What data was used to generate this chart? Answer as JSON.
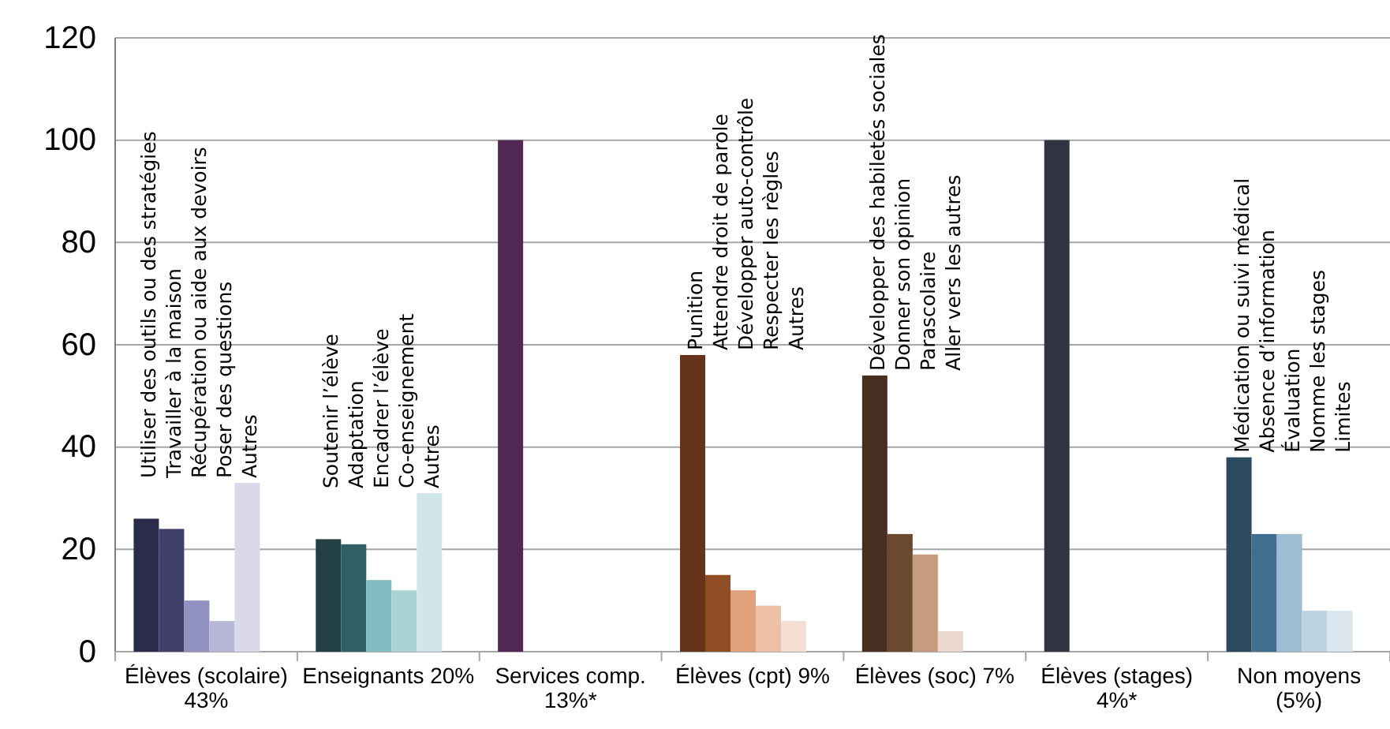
{
  "chart_data": {
    "type": "bar",
    "categories": [
      "Élèves (scolaire) 43%",
      "Enseignants 20%",
      "Services comp. 13%*",
      "Élèves (cpt) 9%",
      "Élèves (soc) 7%",
      "Élèves (stages) 4%*",
      "Non moyens (5%)"
    ],
    "series": [
      {
        "values": [
          26,
          22,
          100,
          58,
          54,
          100,
          38
        ],
        "colors": [
          "#2b2b4a",
          "#224044",
          "#512853",
          "#643319",
          "#472e21",
          "#313341",
          "#2b4a5f"
        ]
      },
      {
        "values": [
          24,
          21,
          null,
          15,
          23,
          null,
          23
        ],
        "colors": [
          "#3f3f69",
          "#325f63",
          null,
          "#8f4d24",
          "#6a4930",
          null,
          "#406e8e"
        ]
      },
      {
        "values": [
          10,
          14,
          null,
          12,
          19,
          null,
          23
        ],
        "colors": [
          "#9191bf",
          "#82bcc0",
          null,
          "#e0a07c",
          "#c69b7e",
          null,
          "#9dbdd3"
        ]
      },
      {
        "values": [
          6,
          12,
          null,
          9,
          4,
          null,
          8
        ],
        "colors": [
          "#b7b6d6",
          "#aad2d2",
          null,
          "#eec0a6",
          "#ebd9cf",
          null,
          "#bed3e2"
        ]
      },
      {
        "values": [
          33,
          31,
          null,
          6,
          null,
          null,
          8
        ],
        "colors": [
          "#dad9ea",
          "#d1e6e8",
          null,
          "#f5ded2",
          null,
          null,
          "#dbe6ee"
        ]
      }
    ],
    "ylim": [
      0,
      120
    ],
    "yticks": [
      0,
      20,
      40,
      60,
      80,
      100,
      120
    ],
    "grid": "y",
    "annotations": [
      "Utiliser des outils ou des stratégies",
      "Travailler à la maison",
      "Récupération ou aide aux devoirs",
      "Poser des questions",
      "Autres",
      "Soutenir l’élève",
      "Adaptation",
      "Encadrer l’élève",
      "Co-enseignement",
      "Autres",
      "Punition",
      "Attendre droit de parole",
      "Développer auto-contrôle",
      "Respecter les règles",
      "Autres",
      "Développer des habiletés sociales",
      "Donner son opinion",
      "Parascolaire",
      "Aller vers les autres",
      "Médication ou suivi médical",
      "Absence d’information",
      "Évaluation",
      "Nomme les stages",
      "Limites"
    ]
  }
}
